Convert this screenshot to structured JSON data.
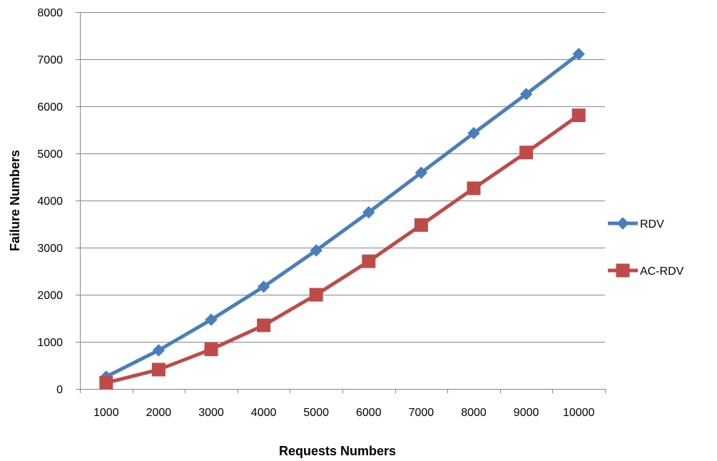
{
  "chart_data": {
    "type": "line",
    "categories": [
      "1000",
      "2000",
      "3000",
      "4000",
      "5000",
      "6000",
      "7000",
      "8000",
      "9000",
      "10000"
    ],
    "series": [
      {
        "name": "RDV",
        "color": "#4a7ebb",
        "marker": "diamond",
        "values": [
          260,
          820,
          1470,
          2170,
          2940,
          3750,
          4590,
          5430,
          6260,
          7110
        ]
      },
      {
        "name": "AC-RDV",
        "color": "#be4b48",
        "marker": "square",
        "values": [
          130,
          410,
          840,
          1350,
          2000,
          2710,
          3480,
          4260,
          5020,
          5810
        ]
      }
    ],
    "xlabel": "Requests Numbers",
    "ylabel": "Failure Numbers",
    "ylim": [
      0,
      8000
    ],
    "yticks": [
      0,
      1000,
      2000,
      3000,
      4000,
      5000,
      6000,
      7000,
      8000
    ],
    "grid": true,
    "legend": "right"
  }
}
